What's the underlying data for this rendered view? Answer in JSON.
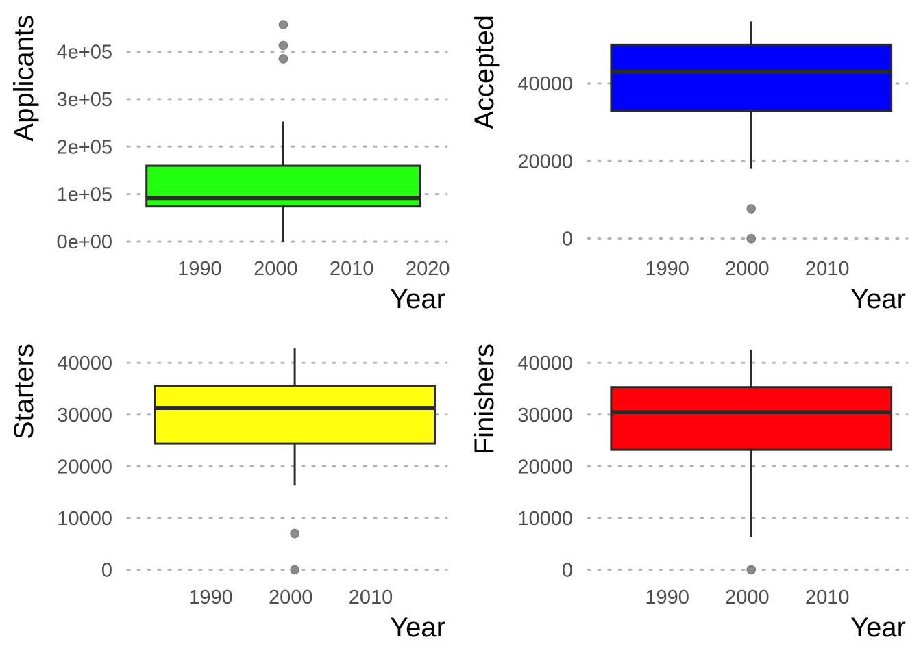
{
  "chart_data": [
    {
      "type": "boxplot",
      "xlabel": "Year",
      "ylabel": "Applicants",
      "x_ticks": [
        1990,
        2000,
        2010,
        2020
      ],
      "x_tick_labels": [
        "1990",
        "2000",
        "2010",
        "2020"
      ],
      "xlim": [
        1980.5,
        2022.5
      ],
      "y_ticks": [
        0,
        100000,
        200000,
        300000,
        400000
      ],
      "y_tick_labels": [
        "0e+00",
        "1e+05",
        "2e+05",
        "3e+05",
        "4e+05"
      ],
      "ylim": [
        -10000,
        480000
      ],
      "grid": "horizontal dotted",
      "box": {
        "x_center": 2001,
        "x_from": 1983,
        "x_to": 2019,
        "q1": 74000,
        "median": 92000,
        "q3": 160000,
        "whisker_low": 0,
        "whisker_high": 253000,
        "outliers": [
          385000,
          413000,
          457000
        ]
      },
      "fill": "#22ff0f"
    },
    {
      "type": "boxplot",
      "xlabel": "Year",
      "ylabel": "Accepted",
      "x_ticks": [
        1990,
        2000,
        2010
      ],
      "x_tick_labels": [
        "1990",
        "2000",
        "2010"
      ],
      "xlim": [
        1980.1,
        2020
      ],
      "y_ticks": [
        0,
        20000,
        40000
      ],
      "y_tick_labels": [
        "0",
        "20000",
        "40000"
      ],
      "ylim": [
        -2000,
        58000
      ],
      "grid": "horizontal dotted",
      "box": {
        "x_center": 2000.5,
        "x_from": 1983,
        "x_to": 2018,
        "q1": 33000,
        "median": 43000,
        "q3": 50000,
        "whisker_low": 18000,
        "whisker_high": 56000,
        "outliers": [
          0,
          7700
        ]
      },
      "fill": "#0000ff"
    },
    {
      "type": "boxplot",
      "xlabel": "Year",
      "ylabel": "Starters",
      "x_ticks": [
        1990,
        2000,
        2010
      ],
      "x_tick_labels": [
        "1990",
        "2000",
        "2010"
      ],
      "xlim": [
        1979.6,
        2019.5
      ],
      "y_ticks": [
        0,
        10000,
        20000,
        30000,
        40000
      ],
      "y_tick_labels": [
        "0",
        "10000",
        "20000",
        "30000",
        "40000"
      ],
      "ylim": [
        -1000,
        44000
      ],
      "grid": "horizontal dotted",
      "box": {
        "x_center": 2000.5,
        "x_from": 1983,
        "x_to": 2018,
        "q1": 24400,
        "median": 31300,
        "q3": 35600,
        "whisker_low": 16300,
        "whisker_high": 42800,
        "outliers": [
          0,
          7000
        ]
      },
      "fill": "#ffff0f"
    },
    {
      "type": "boxplot",
      "xlabel": "Year",
      "ylabel": "Finishers",
      "x_ticks": [
        1990,
        2000,
        2010
      ],
      "x_tick_labels": [
        "1990",
        "2000",
        "2010"
      ],
      "xlim": [
        1980.1,
        2020
      ],
      "y_ticks": [
        0,
        10000,
        20000,
        30000,
        40000
      ],
      "y_tick_labels": [
        "0",
        "10000",
        "20000",
        "30000",
        "40000"
      ],
      "ylim": [
        -1000,
        44000
      ],
      "grid": "horizontal dotted",
      "box": {
        "x_center": 2000.5,
        "x_from": 1983,
        "x_to": 2018,
        "q1": 23200,
        "median": 30500,
        "q3": 35300,
        "whisker_low": 6300,
        "whisker_high": 42500,
        "outliers": [
          0
        ]
      },
      "fill": "#ff0008"
    }
  ]
}
